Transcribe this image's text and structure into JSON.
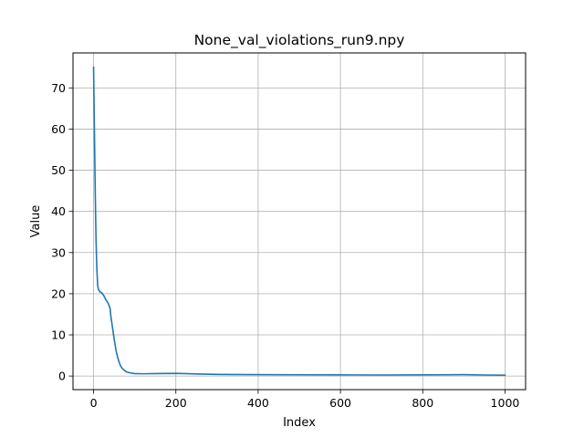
{
  "chart_data": {
    "type": "line",
    "title": "None_val_violations_run9.npy",
    "xlabel": "Index",
    "ylabel": "Value",
    "xlim": [
      -50,
      1050
    ],
    "ylim": [
      -3.3,
      78.5
    ],
    "xticks": [
      0,
      200,
      400,
      600,
      800,
      1000
    ],
    "yticks": [
      0,
      10,
      20,
      30,
      40,
      50,
      60,
      70
    ],
    "grid": true,
    "series": [
      {
        "color": "#1f77b4",
        "x": [
          0,
          2,
          4,
          6,
          8,
          10,
          12,
          15,
          20,
          25,
          30,
          35,
          40,
          42,
          45,
          50,
          55,
          60,
          65,
          70,
          80,
          90,
          100,
          120,
          150,
          200,
          250,
          300,
          400,
          500,
          600,
          700,
          800,
          850,
          900,
          950,
          1000
        ],
        "y": [
          75,
          60,
          45,
          33,
          26,
          22,
          21,
          20.5,
          20.2,
          19.5,
          18.5,
          17.8,
          16.5,
          14.5,
          12.5,
          9,
          6,
          4,
          2.6,
          1.8,
          1.0,
          0.75,
          0.6,
          0.55,
          0.6,
          0.65,
          0.5,
          0.4,
          0.35,
          0.3,
          0.28,
          0.25,
          0.28,
          0.3,
          0.35,
          0.25,
          0.2
        ]
      }
    ]
  }
}
